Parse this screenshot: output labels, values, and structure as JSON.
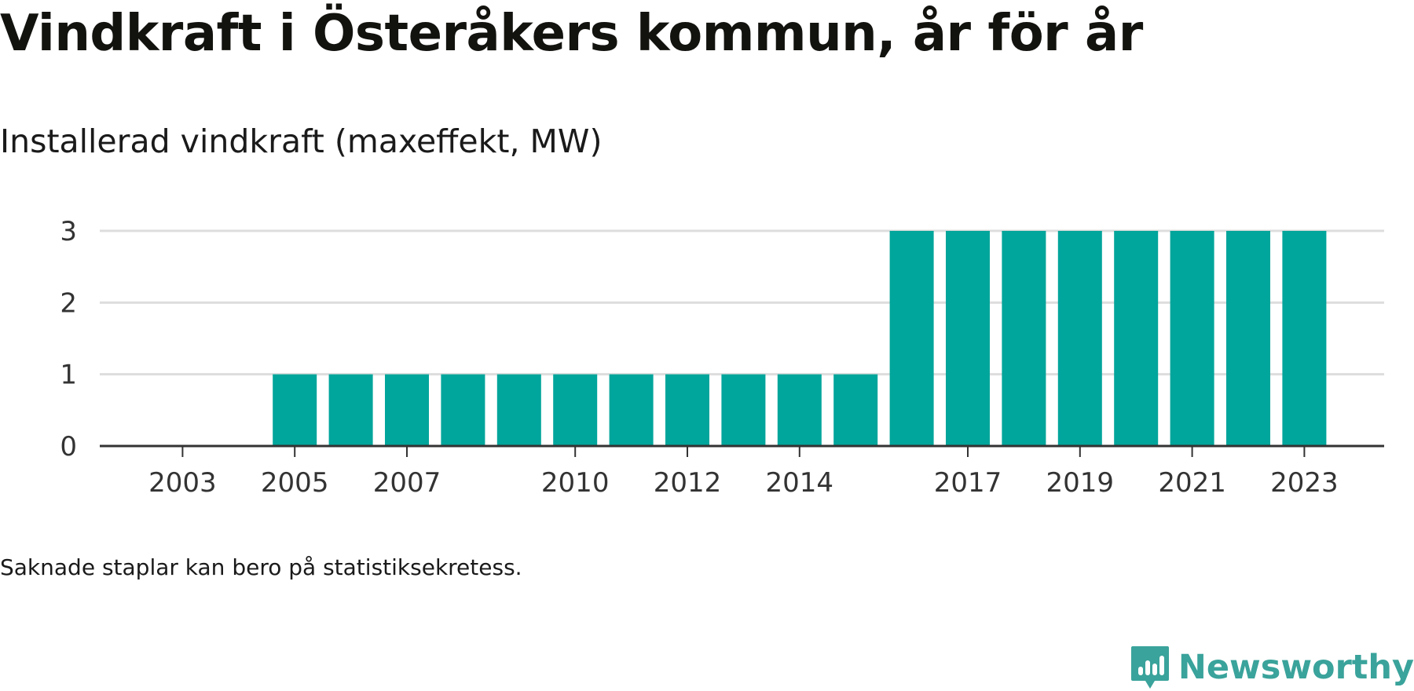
{
  "header": {
    "title": "Vindkraft i Österåkers kommun, år för år",
    "subtitle": "Installerad vindkraft (maxeffekt, MW)"
  },
  "footer": {
    "note": "Saknade staplar kan bero på statistiksekretess.",
    "brand": "Newsworthy"
  },
  "colors": {
    "bar": "#00a59b",
    "grid": "#dddddd",
    "axis": "#333333",
    "brand": "#3aa39b"
  },
  "chart_data": {
    "type": "bar",
    "title": "Vindkraft i Österåkers kommun, år för år",
    "subtitle": "Installerad vindkraft (maxeffekt, MW)",
    "xlabel": "",
    "ylabel": "",
    "ylim": [
      0,
      3
    ],
    "yticks": [
      0,
      1,
      2,
      3
    ],
    "x_tick_labels": [
      "2003",
      "2005",
      "2007",
      "2010",
      "2012",
      "2014",
      "2017",
      "2019",
      "2021",
      "2023"
    ],
    "categories": [
      "2002",
      "2003",
      "2004",
      "2005",
      "2006",
      "2007",
      "2008",
      "2009",
      "2010",
      "2011",
      "2012",
      "2013",
      "2014",
      "2015",
      "2016",
      "2017",
      "2018",
      "2019",
      "2020",
      "2021",
      "2022",
      "2023"
    ],
    "values": [
      null,
      null,
      null,
      1,
      1,
      1,
      1,
      1,
      1,
      1,
      1,
      1,
      1,
      1,
      3,
      3,
      3,
      3,
      3,
      3,
      3,
      3
    ],
    "grid": true,
    "legend": "none"
  }
}
